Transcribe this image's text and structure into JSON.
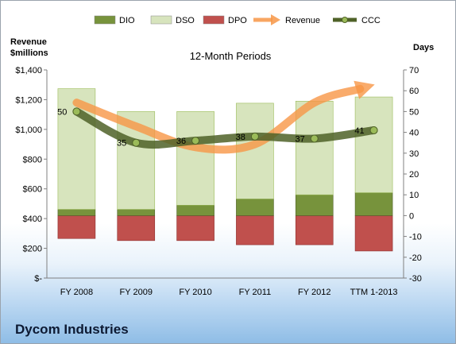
{
  "footer": {
    "company": "Dycom Industries"
  },
  "chart_data": {
    "type": "bar",
    "title": "12-Month Periods",
    "categories": [
      "FY 2008",
      "FY 2009",
      "FY 2010",
      "FY 2011",
      "FY 2012",
      "TTM 1-2013"
    ],
    "left_axis": {
      "label_lines": [
        "Revenue",
        "$millions"
      ],
      "range": [
        0,
        1400
      ],
      "ticks": [
        "$-",
        "$200",
        "$400",
        "$600",
        "$800",
        "$1,000",
        "$1,200",
        "$1,400"
      ]
    },
    "right_axis": {
      "label": "Days",
      "range": [
        -30,
        70
      ],
      "ticks": [
        "-30",
        "-20",
        "-10",
        "0",
        "10",
        "20",
        "30",
        "40",
        "50",
        "60",
        "70"
      ]
    },
    "legend_position": "top",
    "series": [
      {
        "name": "DIO",
        "kind": "stacked-bar-days",
        "color": "#77933c",
        "values": [
          3,
          3,
          5,
          8,
          10,
          11
        ]
      },
      {
        "name": "DSO",
        "kind": "stacked-bar-days",
        "color": "#d7e4bd",
        "values": [
          58,
          47,
          45,
          46,
          45,
          46
        ]
      },
      {
        "name": "DPO",
        "kind": "bar-days-negative",
        "color": "#c0504d",
        "values": [
          -11,
          -12,
          -12,
          -14,
          -14,
          -17
        ]
      },
      {
        "name": "Revenue",
        "kind": "line-left-axis",
        "color": "#f79646",
        "values": [
          1180,
          1020,
          880,
          900,
          1180,
          1300
        ]
      },
      {
        "name": "CCC",
        "kind": "line-right-axis",
        "color": "#4f6228",
        "values": [
          50,
          35,
          36,
          38,
          37,
          41
        ],
        "labels": [
          "50",
          "35",
          "36",
          "38",
          "37",
          "41"
        ]
      }
    ]
  }
}
